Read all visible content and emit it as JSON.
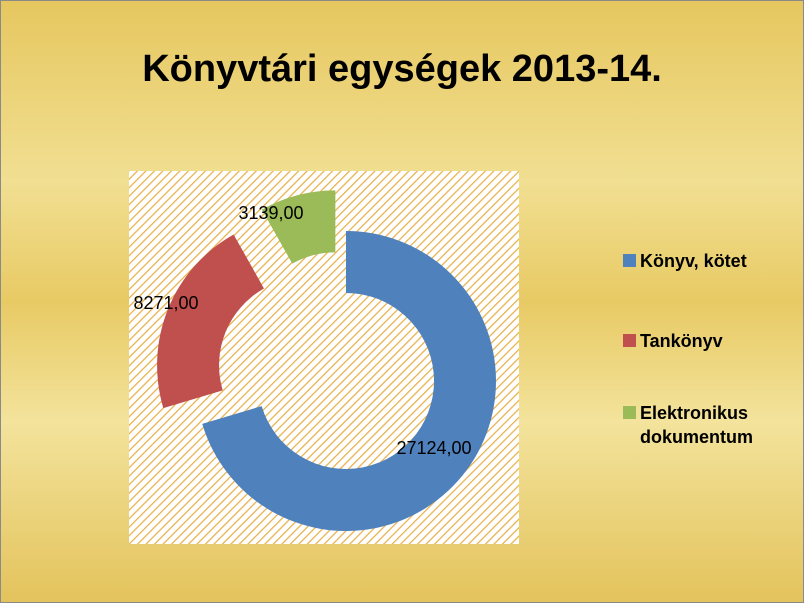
{
  "chart_data": {
    "type": "doughnut",
    "title": "Könyvtári egységek 2013-14.",
    "categories": [
      "Könyv, kötet",
      "Tankönyv",
      "Elektronikus dokumentum"
    ],
    "values": [
      27124,
      8271,
      3139
    ],
    "value_labels": [
      "27124,00",
      "8271,00",
      "3139,00"
    ],
    "colors": [
      "#4f81bd",
      "#c0504d",
      "#9bbb59"
    ],
    "legend": "right"
  }
}
